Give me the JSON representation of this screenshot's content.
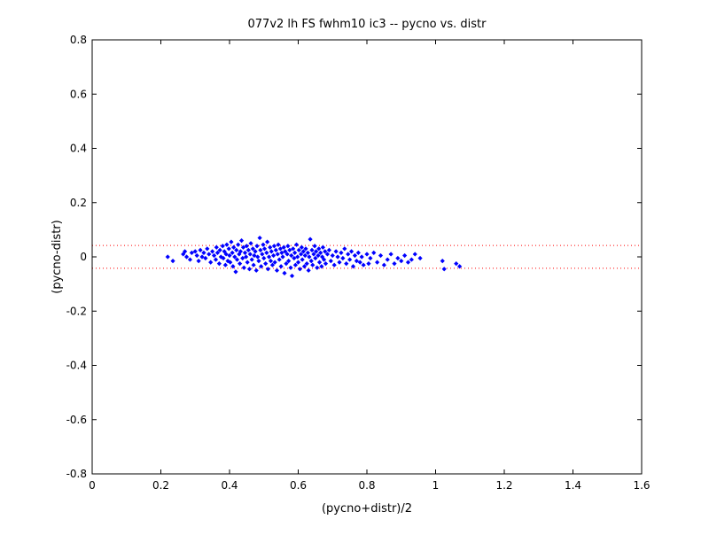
{
  "chart_data": {
    "type": "scatter",
    "title": "077v2 lh FS fwhm10 ic3 -- pycno vs. distr",
    "xlabel": "(pycno+distr)/2",
    "ylabel": "(pycno-distr)",
    "xlim": [
      0,
      1.6
    ],
    "ylim": [
      -0.8,
      0.8
    ],
    "xticks": [
      0,
      0.2,
      0.4,
      0.6,
      0.8,
      1,
      1.2,
      1.4,
      1.6
    ],
    "xtick_labels": [
      "0",
      "0.2",
      "0.4",
      "0.6",
      "0.8",
      "1",
      "1.2",
      "1.4",
      "1.6"
    ],
    "yticks": [
      -0.8,
      -0.6,
      -0.4,
      -0.2,
      0,
      0.2,
      0.4,
      0.6,
      0.8
    ],
    "ytick_labels": [
      "-0.8",
      "-0.6",
      "-0.4",
      "-0.2",
      "0",
      "0.2",
      "0.4",
      "0.6",
      "0.8"
    ],
    "grid": false,
    "marker_color": "#0000ff",
    "reference_line_color": "#ff0000",
    "reference_lines": [
      0.042,
      -0.042
    ],
    "series": [
      {
        "points": [
          [
            0.22,
            0.0
          ],
          [
            0.235,
            -0.015
          ],
          [
            0.265,
            0.01
          ],
          [
            0.27,
            0.02
          ],
          [
            0.275,
            0.0
          ],
          [
            0.285,
            -0.01
          ],
          [
            0.29,
            0.015
          ],
          [
            0.3,
            0.02
          ],
          [
            0.305,
            0.005
          ],
          [
            0.31,
            -0.015
          ],
          [
            0.315,
            0.025
          ],
          [
            0.32,
            0.0
          ],
          [
            0.325,
            0.015
          ],
          [
            0.33,
            -0.005
          ],
          [
            0.335,
            0.03
          ],
          [
            0.34,
            0.01
          ],
          [
            0.345,
            -0.02
          ],
          [
            0.35,
            0.02
          ],
          [
            0.355,
            0.005
          ],
          [
            0.36,
            -0.01
          ],
          [
            0.362,
            0.035
          ],
          [
            0.365,
            0.015
          ],
          [
            0.37,
            -0.025
          ],
          [
            0.372,
            0.025
          ],
          [
            0.375,
            0.0
          ],
          [
            0.38,
            0.04
          ],
          [
            0.382,
            -0.005
          ],
          [
            0.385,
            0.02
          ],
          [
            0.388,
            -0.03
          ],
          [
            0.39,
            0.01
          ],
          [
            0.392,
            0.045
          ],
          [
            0.395,
            -0.015
          ],
          [
            0.398,
            0.03
          ],
          [
            0.4,
            0.005
          ],
          [
            0.402,
            -0.02
          ],
          [
            0.405,
            0.055
          ],
          [
            0.408,
            0.015
          ],
          [
            0.41,
            -0.035
          ],
          [
            0.412,
            0.035
          ],
          [
            0.415,
            0.0
          ],
          [
            0.418,
            -0.055
          ],
          [
            0.42,
            0.025
          ],
          [
            0.422,
            -0.01
          ],
          [
            0.425,
            0.045
          ],
          [
            0.428,
            0.01
          ],
          [
            0.43,
            -0.025
          ],
          [
            0.432,
            0.02
          ],
          [
            0.435,
            0.06
          ],
          [
            0.438,
            -0.005
          ],
          [
            0.44,
            0.035
          ],
          [
            0.442,
            -0.04
          ],
          [
            0.445,
            0.015
          ],
          [
            0.448,
            0.0
          ],
          [
            0.45,
            0.04
          ],
          [
            0.452,
            -0.02
          ],
          [
            0.455,
            0.025
          ],
          [
            0.458,
            -0.045
          ],
          [
            0.46,
            0.01
          ],
          [
            0.462,
            0.05
          ],
          [
            0.465,
            -0.01
          ],
          [
            0.468,
            0.03
          ],
          [
            0.47,
            -0.03
          ],
          [
            0.472,
            0.005
          ],
          [
            0.475,
            0.02
          ],
          [
            0.478,
            -0.05
          ],
          [
            0.48,
            0.04
          ],
          [
            0.482,
            0.0
          ],
          [
            0.485,
            -0.015
          ],
          [
            0.488,
            0.07
          ],
          [
            0.49,
            0.025
          ],
          [
            0.492,
            -0.035
          ],
          [
            0.495,
            0.01
          ],
          [
            0.498,
            0.045
          ],
          [
            0.5,
            -0.005
          ],
          [
            0.502,
            0.03
          ],
          [
            0.505,
            -0.025
          ],
          [
            0.508,
            0.015
          ],
          [
            0.51,
            0.055
          ],
          [
            0.512,
            -0.045
          ],
          [
            0.515,
            0.0
          ],
          [
            0.518,
            0.035
          ],
          [
            0.52,
            -0.015
          ],
          [
            0.522,
            0.02
          ],
          [
            0.525,
            -0.03
          ],
          [
            0.528,
            0.005
          ],
          [
            0.53,
            0.04
          ],
          [
            0.532,
            -0.02
          ],
          [
            0.535,
            0.025
          ],
          [
            0.538,
            -0.05
          ],
          [
            0.54,
            0.01
          ],
          [
            0.542,
            0.045
          ],
          [
            0.545,
            -0.01
          ],
          [
            0.548,
            0.03
          ],
          [
            0.55,
            -0.035
          ],
          [
            0.552,
            0.015
          ],
          [
            0.555,
            0.0
          ],
          [
            0.558,
            0.035
          ],
          [
            0.56,
            -0.06
          ],
          [
            0.562,
            0.02
          ],
          [
            0.565,
            -0.025
          ],
          [
            0.568,
            0.01
          ],
          [
            0.57,
            0.04
          ],
          [
            0.572,
            -0.015
          ],
          [
            0.575,
            0.025
          ],
          [
            0.578,
            -0.04
          ],
          [
            0.58,
            0.005
          ],
          [
            0.582,
            -0.07
          ],
          [
            0.585,
            0.03
          ],
          [
            0.588,
            -0.005
          ],
          [
            0.59,
            0.015
          ],
          [
            0.592,
            -0.03
          ],
          [
            0.595,
            0.045
          ],
          [
            0.598,
            0.0
          ],
          [
            0.6,
            -0.02
          ],
          [
            0.602,
            0.025
          ],
          [
            0.605,
            -0.045
          ],
          [
            0.608,
            0.01
          ],
          [
            0.61,
            0.035
          ],
          [
            0.612,
            -0.01
          ],
          [
            0.615,
            0.02
          ],
          [
            0.618,
            -0.035
          ],
          [
            0.62,
            0.005
          ],
          [
            0.622,
            0.03
          ],
          [
            0.625,
            -0.025
          ],
          [
            0.628,
            0.015
          ],
          [
            0.63,
            -0.05
          ],
          [
            0.632,
            0.0
          ],
          [
            0.635,
            0.065
          ],
          [
            0.638,
            -0.015
          ],
          [
            0.64,
            0.025
          ],
          [
            0.642,
            -0.03
          ],
          [
            0.645,
            0.01
          ],
          [
            0.648,
            0.04
          ],
          [
            0.65,
            -0.005
          ],
          [
            0.652,
            0.02
          ],
          [
            0.655,
            -0.04
          ],
          [
            0.658,
            0.005
          ],
          [
            0.66,
            0.03
          ],
          [
            0.662,
            -0.02
          ],
          [
            0.665,
            0.015
          ],
          [
            0.668,
            -0.035
          ],
          [
            0.67,
            0.0
          ],
          [
            0.672,
            0.035
          ],
          [
            0.675,
            -0.01
          ],
          [
            0.678,
            0.02
          ],
          [
            0.68,
            -0.025
          ],
          [
            0.685,
            0.01
          ],
          [
            0.69,
            0.025
          ],
          [
            0.695,
            -0.015
          ],
          [
            0.7,
            0.005
          ],
          [
            0.705,
            -0.03
          ],
          [
            0.71,
            0.02
          ],
          [
            0.715,
            0.0
          ],
          [
            0.72,
            -0.02
          ],
          [
            0.725,
            0.015
          ],
          [
            0.73,
            -0.005
          ],
          [
            0.735,
            0.03
          ],
          [
            0.74,
            -0.025
          ],
          [
            0.745,
            0.01
          ],
          [
            0.75,
            -0.01
          ],
          [
            0.755,
            0.02
          ],
          [
            0.76,
            -0.035
          ],
          [
            0.765,
            0.005
          ],
          [
            0.77,
            -0.015
          ],
          [
            0.775,
            0.015
          ],
          [
            0.78,
            -0.02
          ],
          [
            0.785,
            0.0
          ],
          [
            0.79,
            -0.03
          ],
          [
            0.8,
            0.01
          ],
          [
            0.805,
            -0.025
          ],
          [
            0.81,
            -0.005
          ],
          [
            0.82,
            0.015
          ],
          [
            0.83,
            -0.02
          ],
          [
            0.84,
            0.005
          ],
          [
            0.85,
            -0.03
          ],
          [
            0.86,
            -0.01
          ],
          [
            0.87,
            0.01
          ],
          [
            0.88,
            -0.025
          ],
          [
            0.89,
            -0.005
          ],
          [
            0.9,
            -0.015
          ],
          [
            0.91,
            0.005
          ],
          [
            0.92,
            -0.02
          ],
          [
            0.93,
            -0.01
          ],
          [
            0.94,
            0.01
          ],
          [
            0.955,
            -0.005
          ],
          [
            1.02,
            -0.015
          ],
          [
            1.025,
            -0.045
          ],
          [
            1.06,
            -0.025
          ],
          [
            1.07,
            -0.035
          ]
        ]
      }
    ]
  }
}
